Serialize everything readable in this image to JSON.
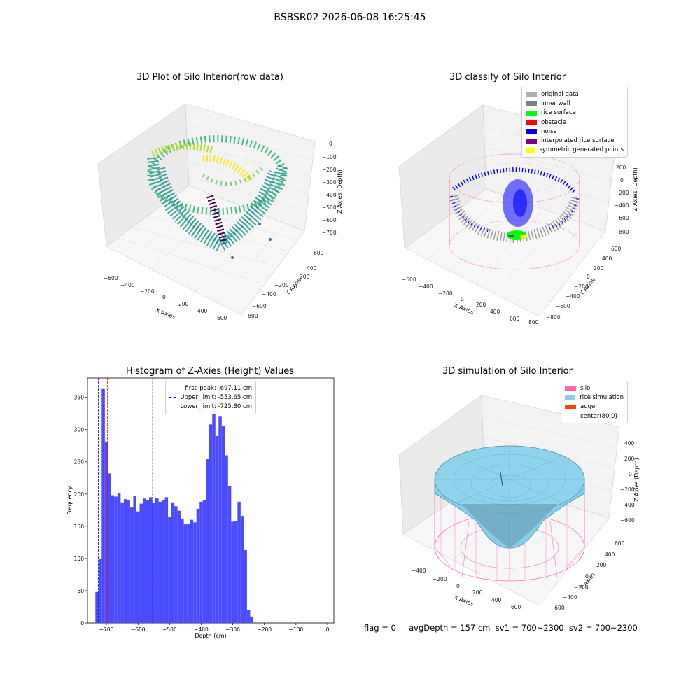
{
  "suptitle": "BSBSR02 2026-06-08 16:25:45",
  "panel1": {
    "title": "3D Plot of Silo Interior(row data)",
    "xlabel": "X Axies",
    "ylabel": "Y Axies",
    "zlabel": "Z Axies (Depth)",
    "xticks": [
      "−600",
      "−400",
      "−200",
      "0",
      "200",
      "400",
      "600"
    ],
    "yticks": [
      "600",
      "400",
      "200",
      "0",
      "−200",
      "−400",
      "−600",
      "−800"
    ],
    "zticks": [
      "0",
      "−100",
      "−200",
      "−300",
      "−400",
      "−500",
      "−600",
      "−700"
    ]
  },
  "panel2": {
    "title": "3D classify of Silo Interior",
    "xlabel": "X Axies",
    "ylabel": "Y Axies",
    "zlabel": "Z Axies (Depth)",
    "xticks": [
      "−600",
      "−400",
      "−200",
      "0",
      "200",
      "400",
      "600",
      "800"
    ],
    "yticks": [
      "600",
      "400",
      "200",
      "0",
      "−200",
      "−400",
      "−600",
      "−800"
    ],
    "zticks": [
      "400",
      "200",
      "0",
      "−200",
      "−400",
      "−600",
      "−800"
    ],
    "legend": [
      {
        "label": "original data",
        "color": "#b0b0b0"
      },
      {
        "label": "inner wall",
        "color": "#808080"
      },
      {
        "label": "rice surface",
        "color": "#00ff00"
      },
      {
        "label": "obstacle",
        "color": "#ff0000"
      },
      {
        "label": "noise",
        "color": "#0000ff"
      },
      {
        "label": "interpolated rice surface",
        "color": "#800080"
      },
      {
        "label": "symmetric generated points",
        "color": "#ffff00"
      }
    ]
  },
  "panel4": {
    "title": "3D simulation of Silo Interior",
    "xlabel": "X Axies",
    "ylabel": "Y Axies",
    "zlabel": "Z Axies (Depth)",
    "xticks": [
      "−400",
      "−200",
      "0",
      "200",
      "400",
      "600"
    ],
    "yticks": [
      "600",
      "400",
      "200",
      "0",
      "−200",
      "−400",
      "−600"
    ],
    "zticks": [
      "400",
      "200",
      "0",
      "−200",
      "−400",
      "−600"
    ],
    "legend": [
      {
        "label": "silo",
        "color": "#ff69b4"
      },
      {
        "label": "rice simulation",
        "color": "#87ceeb"
      },
      {
        "label": "auger",
        "color": "#ff4500"
      },
      {
        "label": "center(80,0)",
        "color": ""
      }
    ]
  },
  "status": "flag = 0     avgDepth = 157 cm  sv1 = 700~2300  sv2 = 700~2300",
  "chart_data": {
    "type": "bar",
    "title": "Histogram of Z-Axies (Height) Values",
    "xlabel": "Depth (cm)",
    "ylabel": "Frequency",
    "bar_color": "#4b4bff",
    "bin_width": 10,
    "bin_start": -735,
    "xlim": [
      -760,
      20
    ],
    "ylim": [
      0,
      380
    ],
    "xticks": [
      -700,
      -600,
      -500,
      -400,
      -300,
      -200,
      -100,
      0
    ],
    "xtick_labels": [
      "−700",
      "−600",
      "−500",
      "−400",
      "−300",
      "−200",
      "−100",
      "0"
    ],
    "yticks": [
      0,
      50,
      100,
      150,
      200,
      250,
      300,
      350
    ],
    "values": [
      48,
      100,
      363,
      281,
      232,
      198,
      196,
      202,
      187,
      192,
      190,
      179,
      197,
      173,
      185,
      193,
      191,
      195,
      186,
      194,
      188,
      191,
      195,
      165,
      187,
      181,
      174,
      161,
      153,
      153,
      160,
      156,
      177,
      188,
      190,
      254,
      308,
      345,
      290,
      320,
      305,
      260,
      212,
      157,
      158,
      188,
      166,
      113,
      20,
      10
    ],
    "vlines": [
      {
        "x": -697.11,
        "color": "#ff0000",
        "label": "first_peak: -697.11 cm"
      },
      {
        "x": -553.65,
        "color": "#0000ff",
        "label": "Upper_limit: -553.65 cm"
      },
      {
        "x": -725.8,
        "color": "#0000ff",
        "label": "Lower_limit: -725.80 cm"
      }
    ],
    "legend_position": "upper-center"
  }
}
